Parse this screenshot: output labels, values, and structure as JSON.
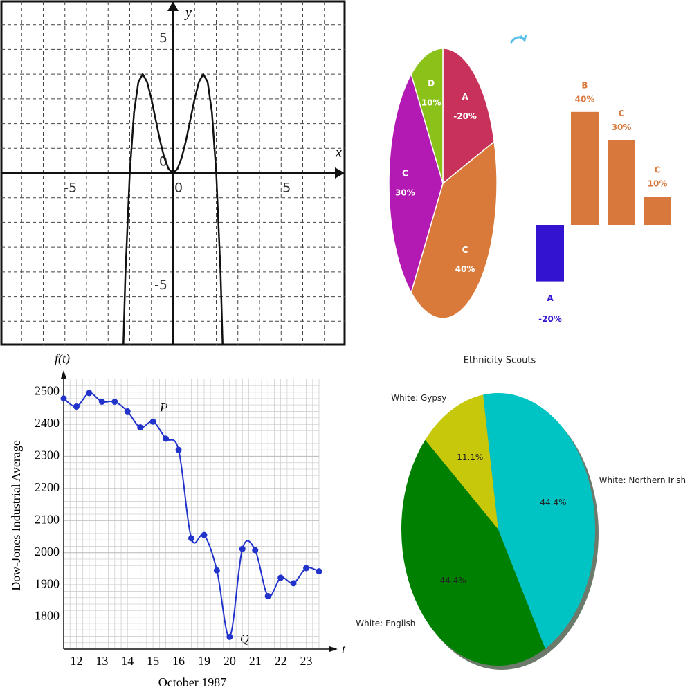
{
  "chart_data": [
    {
      "type": "line",
      "x_label": "x",
      "y_label": "y",
      "x": [
        -2.4,
        -2.2,
        -2.0,
        -1.8,
        -1.6,
        -1.4,
        -1.2,
        -1.0,
        -0.8,
        -0.6,
        -0.4,
        -0.2,
        0,
        0.2,
        0.4,
        0.6,
        0.8,
        1.0,
        1.2,
        1.4,
        1.6,
        1.8,
        2.0,
        2.2,
        2.4
      ],
      "values": [
        -10.14,
        -4.07,
        0,
        2.46,
        3.69,
        4.0,
        3.69,
        3.0,
        2.15,
        1.31,
        0.61,
        0.16,
        0,
        0.16,
        0.61,
        1.31,
        2.15,
        3.0,
        3.69,
        4.0,
        3.69,
        2.46,
        0,
        -4.07,
        -10.14
      ],
      "color": "#111111",
      "xlim": [
        -8,
        8
      ],
      "ylim": [
        -7,
        7
      ],
      "xticks": [
        -5,
        0,
        5
      ],
      "yticks": [
        -5,
        0,
        5
      ],
      "grid": true,
      "xgrid": [
        -7,
        -6,
        -5,
        -4,
        -3,
        -2,
        -1,
        0,
        1,
        2,
        3,
        4,
        5,
        6,
        7
      ],
      "ygrid": [
        -6,
        -5,
        -4,
        -3,
        -2,
        -1,
        0,
        1,
        2,
        3,
        4,
        5,
        6
      ]
    },
    {
      "type": "pie",
      "categories": [
        "A",
        "C",
        "C",
        "D"
      ],
      "values": [
        -20,
        40,
        30,
        10
      ],
      "value_labels": [
        "-20%",
        "40%",
        "30%",
        "10%"
      ],
      "colors": [
        "#c8325a",
        "#d97a3a",
        "#b31ab3",
        "#8bc21a"
      ]
    },
    {
      "type": "bar",
      "categories": [
        "A",
        "B",
        "C",
        "C"
      ],
      "values": [
        -20,
        40,
        30,
        10
      ],
      "value_labels": [
        "-20%",
        "40%",
        "30%",
        "10%"
      ],
      "colors": [
        "#3312d0",
        "#d9783c",
        "#d9783c",
        "#d9783c"
      ]
    },
    {
      "type": "line",
      "x_label": "October 1987",
      "y_label": "Dow-Jones Industrial Average",
      "y_axis_title": "f(t)",
      "x_axis_title": "t",
      "categories": [
        null,
        "12",
        null,
        "13",
        null,
        "14",
        null,
        "15",
        null,
        "16",
        null,
        "19",
        null,
        "20",
        null,
        "21",
        null,
        "22",
        null,
        "23",
        null
      ],
      "values": [
        2480,
        2455,
        2497,
        2470,
        2470,
        2440,
        2390,
        2408,
        2355,
        2320,
        2045,
        2055,
        1945,
        1738,
        2012,
        2008,
        1865,
        1922,
        1905,
        1952,
        1942
      ],
      "annotations": [
        "P",
        "Q"
      ],
      "color": "#2233cc",
      "ylim": [
        1700,
        2540
      ],
      "yticks": [
        1800,
        1900,
        2000,
        2100,
        2200,
        2300,
        2400,
        2500
      ],
      "grid": true,
      "yminor": [
        1720,
        1740,
        1760,
        1780,
        1800,
        1820,
        1840,
        1860,
        1880,
        1900,
        1920,
        1940,
        1960,
        1980,
        2000,
        2020,
        2040,
        2060,
        2080,
        2100,
        2120,
        2140,
        2160,
        2180,
        2200,
        2220,
        2240,
        2260,
        2280,
        2300,
        2320,
        2340,
        2360,
        2380,
        2400,
        2420,
        2440,
        2460,
        2480,
        2500,
        2520
      ]
    },
    {
      "type": "pie",
      "title": "Ethnicity Scouts",
      "categories": [
        "White: Gypsy",
        "White: English",
        "White: Northern Irish"
      ],
      "values": [
        11.1,
        44.4,
        44.4
      ],
      "value_labels": [
        "11.1%",
        "44.4%",
        "44.4%"
      ],
      "colors": [
        "#c8c80a",
        "#008000",
        "#00c4c4"
      ]
    }
  ]
}
